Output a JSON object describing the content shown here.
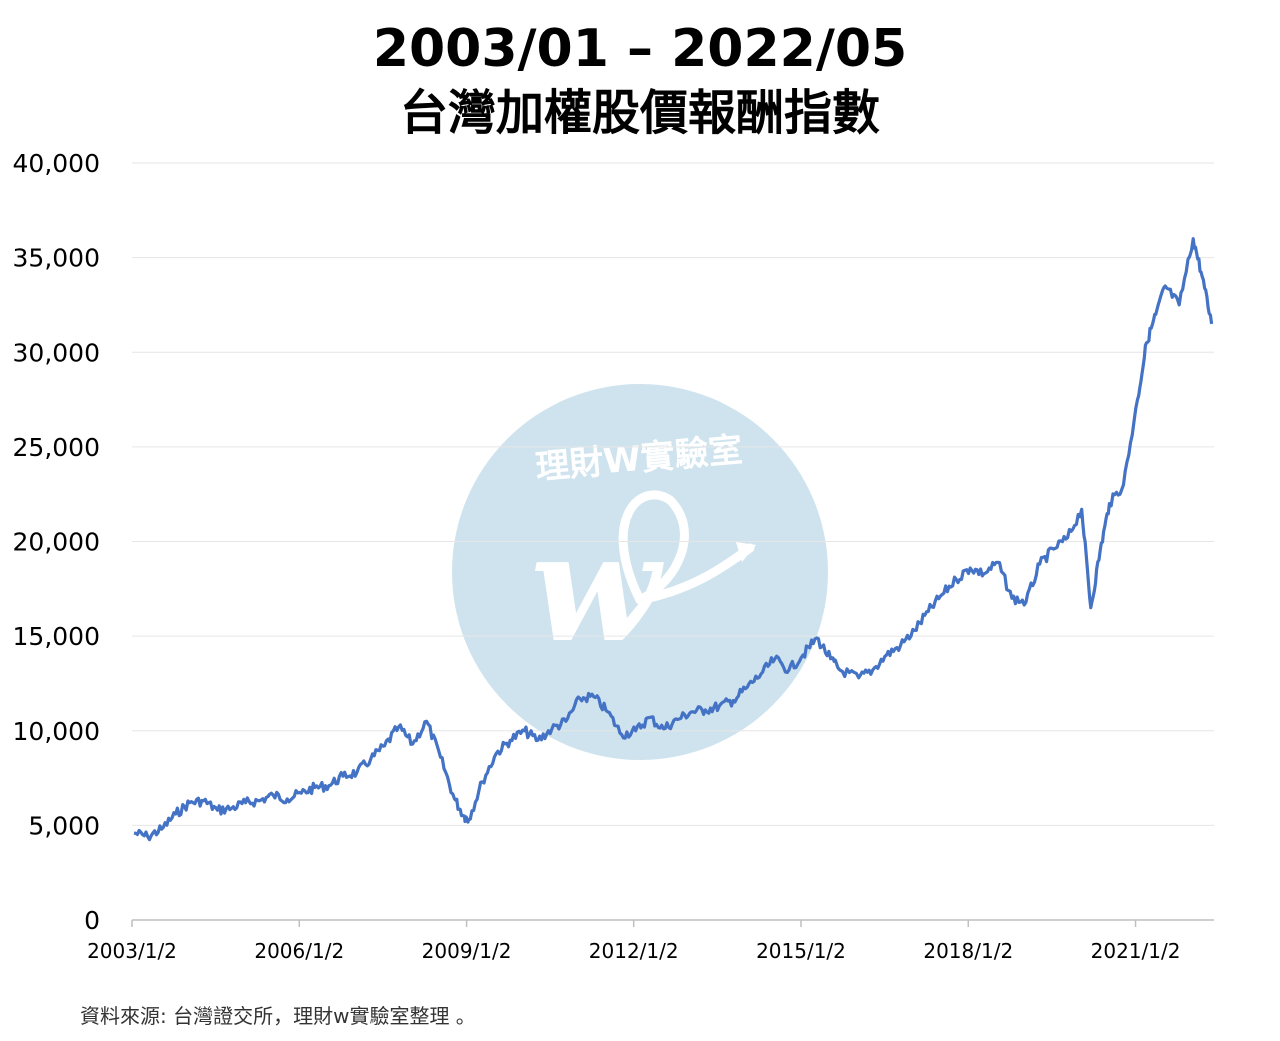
{
  "title_line1": "2003/01 – 2022/05",
  "title_line2": "台灣加權股價報酬指數",
  "watermark": {
    "text": "理財W實驗室",
    "logo_letter": "w"
  },
  "source": "資料來源: 台灣證交所，理財w實驗室整理 。",
  "chart_data": {
    "type": "line",
    "title": "2003/01 – 2022/05 台灣加權股價報酬指數",
    "xlabel": "",
    "ylabel": "",
    "ylim": [
      0,
      40000
    ],
    "yticks": [
      0,
      5000,
      10000,
      15000,
      20000,
      25000,
      30000,
      35000,
      40000
    ],
    "ytick_labels": [
      "0",
      "5,000",
      "10,000",
      "15,000",
      "20,000",
      "25,000",
      "30,000",
      "35,000",
      "40,000"
    ],
    "xlim": [
      "2003-01-02",
      "2022-05-31"
    ],
    "xtick_labels": [
      "2003/1/2",
      "2006/1/2",
      "2009/1/2",
      "2012/1/2",
      "2015/1/2",
      "2018/1/2",
      "2021/1/2"
    ],
    "xtick_dates": [
      "2003-01-02",
      "2006-01-02",
      "2009-01-02",
      "2012-01-02",
      "2015-01-02",
      "2018-01-02",
      "2021-01-02"
    ],
    "grid": true,
    "line_color": "#4472c4",
    "grid_color": "#e6e6e6",
    "series": [
      {
        "x": [
          "2003-01",
          "2003-04",
          "2003-07",
          "2003-10",
          "2004-01",
          "2004-04",
          "2004-07",
          "2004-10",
          "2005-01",
          "2005-04",
          "2005-07",
          "2005-10",
          "2006-01",
          "2006-04",
          "2006-07",
          "2006-10",
          "2007-01",
          "2007-04",
          "2007-07",
          "2007-10",
          "2008-01",
          "2008-04",
          "2008-07",
          "2008-10",
          "2008-12",
          "2009-01",
          "2009-04",
          "2009-07",
          "2009-10",
          "2010-01",
          "2010-04",
          "2010-07",
          "2010-10",
          "2011-01",
          "2011-04",
          "2011-07",
          "2011-10",
          "2012-01",
          "2012-04",
          "2012-07",
          "2012-10",
          "2013-01",
          "2013-04",
          "2013-07",
          "2013-10",
          "2014-01",
          "2014-04",
          "2014-07",
          "2014-10",
          "2015-01",
          "2015-04",
          "2015-07",
          "2015-09",
          "2016-01",
          "2016-04",
          "2016-07",
          "2016-10",
          "2017-01",
          "2017-04",
          "2017-07",
          "2017-10",
          "2018-01",
          "2018-04",
          "2018-07",
          "2018-10",
          "2019-01",
          "2019-04",
          "2019-07",
          "2019-10",
          "2020-01",
          "2020-03",
          "2020-05",
          "2020-07",
          "2020-10",
          "2021-01",
          "2021-03",
          "2021-05",
          "2021-07",
          "2021-10",
          "2022-01",
          "2022-03",
          "2022-05"
        ],
        "values": [
          4600,
          4400,
          4800,
          5600,
          6200,
          6300,
          5800,
          5900,
          6200,
          6300,
          6600,
          6400,
          6700,
          7000,
          7100,
          7600,
          7800,
          8500,
          9200,
          10200,
          9300,
          10500,
          8600,
          6400,
          5500,
          5300,
          7300,
          8800,
          9500,
          10000,
          9500,
          10100,
          10500,
          11700,
          11800,
          11000,
          9800,
          10000,
          10700,
          10100,
          10600,
          11000,
          11100,
          11300,
          11600,
          12300,
          13000,
          13800,
          13200,
          14000,
          14900,
          13800,
          13200,
          12800,
          13200,
          14000,
          14500,
          15300,
          16300,
          17200,
          18000,
          18600,
          18300,
          18900,
          17000,
          16800,
          18800,
          19600,
          20200,
          21700,
          16500,
          19500,
          22000,
          23000,
          27500,
          30500,
          32000,
          33500,
          32500,
          36000,
          34000,
          31500
        ]
      }
    ]
  }
}
